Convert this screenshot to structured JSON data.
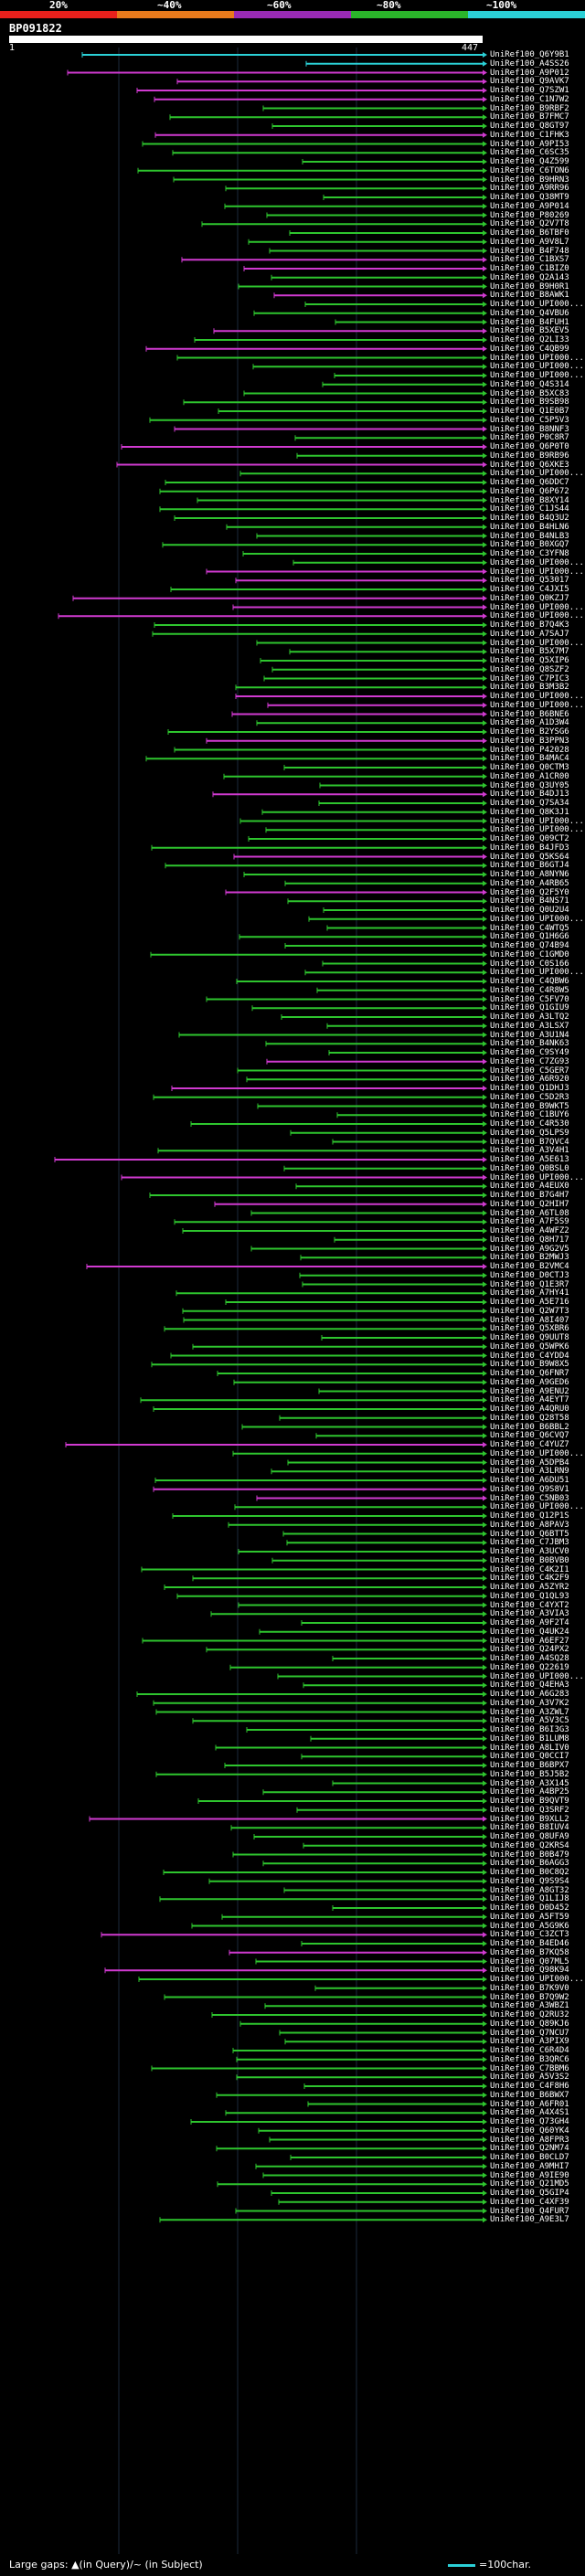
{
  "scale": {
    "labels": [
      "20%",
      "~40%",
      "~60%",
      "~80%",
      "~100%"
    ],
    "colors": [
      "#e8201c",
      "#e87a1c",
      "#9a2ab5",
      "#2ab52a",
      "#2bd0d6"
    ]
  },
  "query": {
    "id": "BP091822",
    "start": "1",
    "end": "447"
  },
  "legend": {
    "text": "Large gaps: ▲(in Query)/~ (in Subject)",
    "scale_text": "=100char."
  },
  "hit_colors": {
    "green": "#2ec52e",
    "magenta": "#d03ad0",
    "cyan": "#2bd0d6",
    "gap": "#7a1070"
  },
  "hits": [
    {
      "label": "UniRef100_Q6Y9B1",
      "color": "cyan"
    },
    {
      "label": "UniRef100_A4SS26",
      "color": "cyan"
    },
    {
      "label": "UniRef100_A9P012",
      "color": "magenta"
    },
    {
      "label": "UniRef100_Q9AVK7",
      "color": "magenta"
    },
    {
      "label": "UniRef100_Q7SZW1",
      "color": "magenta"
    },
    {
      "label": "UniRef100_C1N7W2",
      "color": "magenta"
    },
    {
      "label": "UniRef100_B9RBF2",
      "color": "green"
    },
    {
      "label": "UniRef100_B7FMC7",
      "color": "green"
    },
    {
      "label": "UniRef100_Q8GT97",
      "color": "green"
    },
    {
      "label": "UniRef100_C1FHK3",
      "color": "magenta"
    },
    {
      "label": "UniRef100_A9PI53",
      "color": "green"
    },
    {
      "label": "UniRef100_C6SC35",
      "color": "green"
    },
    {
      "label": "UniRef100_Q4Z599",
      "color": "green"
    },
    {
      "label": "UniRef100_C6TON6",
      "color": "green"
    },
    {
      "label": "UniRef100_B9HRN3",
      "color": "green"
    },
    {
      "label": "UniRef100_A9RR96",
      "color": "green"
    },
    {
      "label": "UniRef100_Q38MT9",
      "color": "green"
    },
    {
      "label": "UniRef100_A9P014",
      "color": "green"
    },
    {
      "label": "UniRef100_P80269",
      "color": "green"
    },
    {
      "label": "UniRef100_Q2V7T8",
      "color": "green"
    },
    {
      "label": "UniRef100_B6TBF0",
      "color": "green"
    },
    {
      "label": "UniRef100_A9V8L7",
      "color": "green"
    },
    {
      "label": "UniRef100_B4F748",
      "color": "green"
    },
    {
      "label": "UniRef100_C1BXS7",
      "color": "magenta"
    },
    {
      "label": "UniRef100_C1BIZ0",
      "color": "magenta"
    },
    {
      "label": "UniRef100_Q2A143",
      "color": "green"
    },
    {
      "label": "UniRef100_B9H0R1",
      "color": "green"
    },
    {
      "label": "UniRef100_B8AWK1",
      "color": "magenta"
    },
    {
      "label": "UniRef100_UPI000...",
      "color": "green"
    },
    {
      "label": "UniRef100_Q4VBU6",
      "color": "green"
    },
    {
      "label": "UniRef100_B4FUH1",
      "color": "green"
    },
    {
      "label": "UniRef100_B5XEV5",
      "color": "magenta"
    },
    {
      "label": "UniRef100_Q2LI33",
      "color": "green"
    },
    {
      "label": "UniRef100_C4QB99",
      "color": "magenta"
    },
    {
      "label": "UniRef100_UPI000...",
      "color": "green"
    },
    {
      "label": "UniRef100_UPI000...",
      "color": "green"
    },
    {
      "label": "UniRef100_UPI000...",
      "color": "green"
    },
    {
      "label": "UniRef100_Q4S314",
      "color": "green"
    },
    {
      "label": "UniRef100_B5XC83",
      "color": "green"
    },
    {
      "label": "UniRef100_B9SB98",
      "color": "green"
    },
    {
      "label": "UniRef100_Q1E0B7",
      "color": "green"
    },
    {
      "label": "UniRef100_C5P5V3",
      "color": "green"
    },
    {
      "label": "UniRef100_B8NNF3",
      "color": "magenta"
    },
    {
      "label": "UniRef100_P0C8R7",
      "color": "green"
    },
    {
      "label": "UniRef100_Q6P0T0",
      "color": "magenta"
    },
    {
      "label": "UniRef100_B9RB96",
      "color": "green"
    },
    {
      "label": "UniRef100_Q6XKE3",
      "color": "magenta"
    },
    {
      "label": "UniRef100_UPI000...",
      "color": "green"
    },
    {
      "label": "UniRef100_Q6DDC7",
      "color": "green"
    },
    {
      "label": "UniRef100_Q6P672",
      "color": "green"
    },
    {
      "label": "UniRef100_B8XY14",
      "color": "green"
    },
    {
      "label": "UniRef100_C1JS44",
      "color": "green"
    },
    {
      "label": "UniRef100_B4Q3U2",
      "color": "green"
    },
    {
      "label": "UniRef100_B4HLN6",
      "color": "green"
    },
    {
      "label": "UniRef100_B4NLB3",
      "color": "green"
    },
    {
      "label": "UniRef100_B0XGQ7",
      "color": "green"
    },
    {
      "label": "UniRef100_C3YFN8",
      "color": "green"
    },
    {
      "label": "UniRef100_UPI000...",
      "color": "green"
    },
    {
      "label": "UniRef100_UPI000...",
      "color": "magenta"
    },
    {
      "label": "UniRef100_Q53017",
      "color": "magenta"
    },
    {
      "label": "UniRef100_C4JXI5",
      "color": "green"
    },
    {
      "label": "UniRef100_Q0KZJ7",
      "color": "magenta"
    },
    {
      "label": "UniRef100_UPI000...",
      "color": "magenta"
    },
    {
      "label": "UniRef100_UPI000...",
      "color": "magenta"
    },
    {
      "label": "UniRef100_B7Q4K3",
      "color": "green"
    },
    {
      "label": "UniRef100_A7SAJ7",
      "color": "green"
    },
    {
      "label": "UniRef100_UPI000...",
      "color": "green"
    },
    {
      "label": "UniRef100_B5X7M7",
      "color": "green"
    },
    {
      "label": "UniRef100_Q5XIP6",
      "color": "green"
    },
    {
      "label": "UniRef100_Q8SZF2",
      "color": "green"
    },
    {
      "label": "UniRef100_C7PIC3",
      "color": "green"
    },
    {
      "label": "UniRef100_B3M3B2",
      "color": "green"
    },
    {
      "label": "UniRef100_UPI000...",
      "color": "magenta"
    },
    {
      "label": "UniRef100_UPI000...",
      "color": "magenta"
    },
    {
      "label": "UniRef100_B6BNE6",
      "color": "magenta"
    },
    {
      "label": "UniRef100_A1D3W4",
      "color": "green"
    },
    {
      "label": "UniRef100_B2YSG6",
      "color": "green"
    },
    {
      "label": "UniRef100_B3PPN3",
      "color": "magenta"
    },
    {
      "label": "UniRef100_P42028",
      "color": "green"
    },
    {
      "label": "UniRef100_B4MAC4",
      "color": "green"
    },
    {
      "label": "UniRef100_Q0CTM3",
      "color": "green"
    },
    {
      "label": "UniRef100_A1CR00",
      "color": "green"
    },
    {
      "label": "UniRef100_Q3UY05",
      "color": "green"
    },
    {
      "label": "UniRef100_B4DJ13",
      "color": "magenta"
    },
    {
      "label": "UniRef100_Q7SA34",
      "color": "green"
    },
    {
      "label": "UniRef100_Q8K3J1",
      "color": "green"
    },
    {
      "label": "UniRef100_UPI000...",
      "color": "green"
    },
    {
      "label": "UniRef100_UPI000...",
      "color": "green"
    },
    {
      "label": "UniRef100_Q09CT2",
      "color": "green"
    },
    {
      "label": "UniRef100_B4JFD3",
      "color": "green"
    },
    {
      "label": "UniRef100_Q5KS64",
      "color": "magenta"
    },
    {
      "label": "UniRef100_B6GTJ4",
      "color": "green"
    },
    {
      "label": "UniRef100_A8NYN6",
      "color": "green"
    },
    {
      "label": "UniRef100_A4RB65",
      "color": "green"
    },
    {
      "label": "UniRef100_Q2F5Y0",
      "color": "magenta"
    },
    {
      "label": "UniRef100_B4NS71",
      "color": "green"
    },
    {
      "label": "UniRef100_Q0U2U4",
      "color": "green"
    },
    {
      "label": "UniRef100_UPI000...",
      "color": "green"
    },
    {
      "label": "UniRef100_C4WTQ5",
      "color": "green"
    },
    {
      "label": "UniRef100_Q1H6G6",
      "color": "green"
    },
    {
      "label": "UniRef100_Q74B94",
      "color": "green"
    },
    {
      "label": "UniRef100_C1GMD0",
      "color": "green"
    },
    {
      "label": "UniRef100_C0S166",
      "color": "green"
    },
    {
      "label": "UniRef100_UPI000...",
      "color": "green"
    },
    {
      "label": "UniRef100_C4QBW6",
      "color": "green"
    },
    {
      "label": "UniRef100_C4R8W5",
      "color": "green"
    },
    {
      "label": "UniRef100_C5FV70",
      "color": "green"
    },
    {
      "label": "UniRef100_Q1GIU9",
      "color": "green"
    },
    {
      "label": "UniRef100_A3LTQ2",
      "color": "green"
    },
    {
      "label": "UniRef100_A3LSX7",
      "color": "green"
    },
    {
      "label": "UniRef100_A3U1N4",
      "color": "green"
    },
    {
      "label": "UniRef100_B4NK63",
      "color": "green"
    },
    {
      "label": "UniRef100_C9SY49",
      "color": "green"
    },
    {
      "label": "UniRef100_C7ZG93",
      "color": "magenta"
    },
    {
      "label": "UniRef100_C5GER7",
      "color": "green"
    },
    {
      "label": "UniRef100_A6R920",
      "color": "green"
    },
    {
      "label": "UniRef100_Q1DHJ3",
      "color": "magenta"
    },
    {
      "label": "UniRef100_C5D2R3",
      "color": "green"
    },
    {
      "label": "UniRef100_B9WKT5",
      "color": "green"
    },
    {
      "label": "UniRef100_C1BUY6",
      "color": "green"
    },
    {
      "label": "UniRef100_C4R530",
      "color": "green"
    },
    {
      "label": "UniRef100_Q5LPS9",
      "color": "green"
    },
    {
      "label": "UniRef100_B7QVC4",
      "color": "green"
    },
    {
      "label": "UniRef100_A3V4H1",
      "color": "green"
    },
    {
      "label": "UniRef100_A5E613",
      "color": "magenta"
    },
    {
      "label": "UniRef100_Q0BSL0",
      "color": "green"
    },
    {
      "label": "UniRef100_UPI000...",
      "color": "magenta"
    },
    {
      "label": "UniRef100_A4EUX0",
      "color": "green"
    },
    {
      "label": "UniRef100_B7G4H7",
      "color": "green"
    },
    {
      "label": "UniRef100_Q2HIH7",
      "color": "magenta"
    },
    {
      "label": "UniRef100_A6TL08",
      "color": "green"
    },
    {
      "label": "UniRef100_A7F5S9",
      "color": "green"
    },
    {
      "label": "UniRef100_A4WFZ2",
      "color": "green"
    },
    {
      "label": "UniRef100_Q8H717",
      "color": "green"
    },
    {
      "label": "UniRef100_A9G2V5",
      "color": "green"
    },
    {
      "label": "UniRef100_B2MWJ3",
      "color": "green"
    },
    {
      "label": "UniRef100_B2VMC4",
      "color": "magenta"
    },
    {
      "label": "UniRef100_D0CTJ3",
      "color": "green"
    },
    {
      "label": "UniRef100_Q1E3R7",
      "color": "green"
    },
    {
      "label": "UniRef100_A7HY41",
      "color": "green"
    },
    {
      "label": "UniRef100_A5E716",
      "color": "green"
    },
    {
      "label": "UniRef100_Q2W7T3",
      "color": "green"
    },
    {
      "label": "UniRef100_A8I407",
      "color": "green"
    },
    {
      "label": "UniRef100_Q5XBR6",
      "color": "green"
    },
    {
      "label": "UniRef100_Q9UUT8",
      "color": "green"
    },
    {
      "label": "UniRef100_Q5WPK6",
      "color": "green"
    },
    {
      "label": "UniRef100_C4YDD4",
      "color": "green"
    },
    {
      "label": "UniRef100_B9W8X5",
      "color": "green"
    },
    {
      "label": "UniRef100_Q6FNR7",
      "color": "green"
    },
    {
      "label": "UniRef100_A9GED6",
      "color": "green"
    },
    {
      "label": "UniRef100_A9ENU2",
      "color": "green"
    },
    {
      "label": "UniRef100_A4EYT7",
      "color": "green"
    },
    {
      "label": "UniRef100_A4QRU0",
      "color": "green"
    },
    {
      "label": "UniRef100_Q28T58",
      "color": "green"
    },
    {
      "label": "UniRef100_B6BBL2",
      "color": "green"
    },
    {
      "label": "UniRef100_Q6CVQ7",
      "color": "green"
    },
    {
      "label": "UniRef100_C4YUZ7",
      "color": "magenta"
    },
    {
      "label": "UniRef100_UPI000...",
      "color": "green"
    },
    {
      "label": "UniRef100_A5DPB4",
      "color": "green"
    },
    {
      "label": "UniRef100_A3LRN9",
      "color": "green"
    },
    {
      "label": "UniRef100_A6DU51",
      "color": "green"
    },
    {
      "label": "UniRef100_Q9S8V1",
      "color": "magenta"
    },
    {
      "label": "UniRef100_C5NB03",
      "color": "magenta"
    },
    {
      "label": "UniRef100_UPI000...",
      "color": "green"
    },
    {
      "label": "UniRef100_Q12P1S",
      "color": "green"
    },
    {
      "label": "UniRef100_A8PAV3",
      "color": "green"
    },
    {
      "label": "UniRef100_Q6BTT5",
      "color": "green"
    },
    {
      "label": "UniRef100_C7JBM3",
      "color": "green"
    },
    {
      "label": "UniRef100_A3UCV0",
      "color": "green"
    },
    {
      "label": "UniRef100_B0BVB0",
      "color": "green"
    },
    {
      "label": "UniRef100_C4K2I1",
      "color": "green"
    },
    {
      "label": "UniRef100_C4K2F9",
      "color": "green"
    },
    {
      "label": "UniRef100_A5ZYR2",
      "color": "green"
    },
    {
      "label": "UniRef100_Q1QL93",
      "color": "green"
    },
    {
      "label": "UniRef100_C4YXT2",
      "color": "green"
    },
    {
      "label": "UniRef100_A3VIA3",
      "color": "green"
    },
    {
      "label": "UniRef100_A9F2T4",
      "color": "green"
    },
    {
      "label": "UniRef100_Q4UK24",
      "color": "green"
    },
    {
      "label": "UniRef100_A6EF27",
      "color": "green"
    },
    {
      "label": "UniRef100_Q24PX2",
      "color": "green"
    },
    {
      "label": "UniRef100_A4SQ28",
      "color": "green"
    },
    {
      "label": "UniRef100_Q22619",
      "color": "green"
    },
    {
      "label": "UniRef100_UPI000...",
      "color": "green"
    },
    {
      "label": "UniRef100_Q4EHA3",
      "color": "green"
    },
    {
      "label": "UniRef100_A6G283",
      "color": "green"
    },
    {
      "label": "UniRef100_A3V7K2",
      "color": "green"
    },
    {
      "label": "UniRef100_A3ZWL7",
      "color": "green"
    },
    {
      "label": "UniRef100_A5V3C5",
      "color": "green"
    },
    {
      "label": "UniRef100_B6I3G3",
      "color": "green"
    },
    {
      "label": "UniRef100_B1LUM8",
      "color": "green"
    },
    {
      "label": "UniRef100_A8LIV0",
      "color": "green"
    },
    {
      "label": "UniRef100_Q0CCI7",
      "color": "green"
    },
    {
      "label": "UniRef100_B6BPX7",
      "color": "green"
    },
    {
      "label": "UniRef100_B5J5B2",
      "color": "green"
    },
    {
      "label": "UniRef100_A3X145",
      "color": "green"
    },
    {
      "label": "UniRef100_A4BP25",
      "color": "green"
    },
    {
      "label": "UniRef100_B9QVT9",
      "color": "green"
    },
    {
      "label": "UniRef100_Q3SRF2",
      "color": "green"
    },
    {
      "label": "UniRef100_B9XLL2",
      "color": "magenta"
    },
    {
      "label": "UniRef100_B8IUV4",
      "color": "green"
    },
    {
      "label": "UniRef100_Q8UFA9",
      "color": "green"
    },
    {
      "label": "UniRef100_Q2KRS4",
      "color": "green"
    },
    {
      "label": "UniRef100_B0B479",
      "color": "green"
    },
    {
      "label": "UniRef100_B6AGG3",
      "color": "green"
    },
    {
      "label": "UniRef100_B0C8Q2",
      "color": "green"
    },
    {
      "label": "UniRef100_Q9S9S4",
      "color": "green"
    },
    {
      "label": "UniRef100_A8GT32",
      "color": "green"
    },
    {
      "label": "UniRef100_Q1LIJ8",
      "color": "green"
    },
    {
      "label": "UniRef100_D0D452",
      "color": "green"
    },
    {
      "label": "UniRef100_A5FT59",
      "color": "green"
    },
    {
      "label": "UniRef100_A5G9K6",
      "color": "green"
    },
    {
      "label": "UniRef100_C3ZCT3",
      "color": "magenta"
    },
    {
      "label": "UniRef100_B4ED46",
      "color": "green"
    },
    {
      "label": "UniRef100_B7KQ58",
      "color": "magenta"
    },
    {
      "label": "UniRef100_Q07ML5",
      "color": "green"
    },
    {
      "label": "UniRef100_Q98K94",
      "color": "magenta"
    },
    {
      "label": "UniRef100_UPI000...",
      "color": "green"
    },
    {
      "label": "UniRef100_B7K9V0",
      "color": "green"
    },
    {
      "label": "UniRef100_B7Q9W2",
      "color": "green"
    },
    {
      "label": "UniRef100_A3WBZ1",
      "color": "green"
    },
    {
      "label": "UniRef100_Q2RU32",
      "color": "green"
    },
    {
      "label": "UniRef100_Q89KJ6",
      "color": "green"
    },
    {
      "label": "UniRef100_Q7NCU7",
      "color": "green"
    },
    {
      "label": "UniRef100_A3PIX9",
      "color": "green"
    },
    {
      "label": "UniRef100_C6R4D4",
      "color": "green"
    },
    {
      "label": "UniRef100_B3QRC6",
      "color": "green"
    },
    {
      "label": "UniRef100_C7BBM6",
      "color": "green"
    },
    {
      "label": "UniRef100_A5V3S2",
      "color": "green"
    },
    {
      "label": "UniRef100_C4F8H6",
      "color": "green"
    },
    {
      "label": "UniRef100_B6BWX7",
      "color": "green"
    },
    {
      "label": "UniRef100_A6FR01",
      "color": "green"
    },
    {
      "label": "UniRef100_A4X4S1",
      "color": "green"
    },
    {
      "label": "UniRef100_Q73GH4",
      "color": "green"
    },
    {
      "label": "UniRef100_Q60YK4",
      "color": "green"
    },
    {
      "label": "UniRef100_A8FPR3",
      "color": "green"
    },
    {
      "label": "UniRef100_Q2NM74",
      "color": "green"
    },
    {
      "label": "UniRef100_B0CLD7",
      "color": "green"
    },
    {
      "label": "UniRef100_A9MHI7",
      "color": "green"
    },
    {
      "label": "UniRef100_A9IE90",
      "color": "green"
    },
    {
      "label": "UniRef100_Q21MD5",
      "color": "green"
    },
    {
      "label": "UniRef100_Q5GIP4",
      "color": "green"
    },
    {
      "label": "UniRef100_C4XF39",
      "color": "green"
    },
    {
      "label": "UniRef100_Q4FUR7",
      "color": "green"
    },
    {
      "label": "UniRef100_A9E3L7",
      "color": "green"
    }
  ]
}
